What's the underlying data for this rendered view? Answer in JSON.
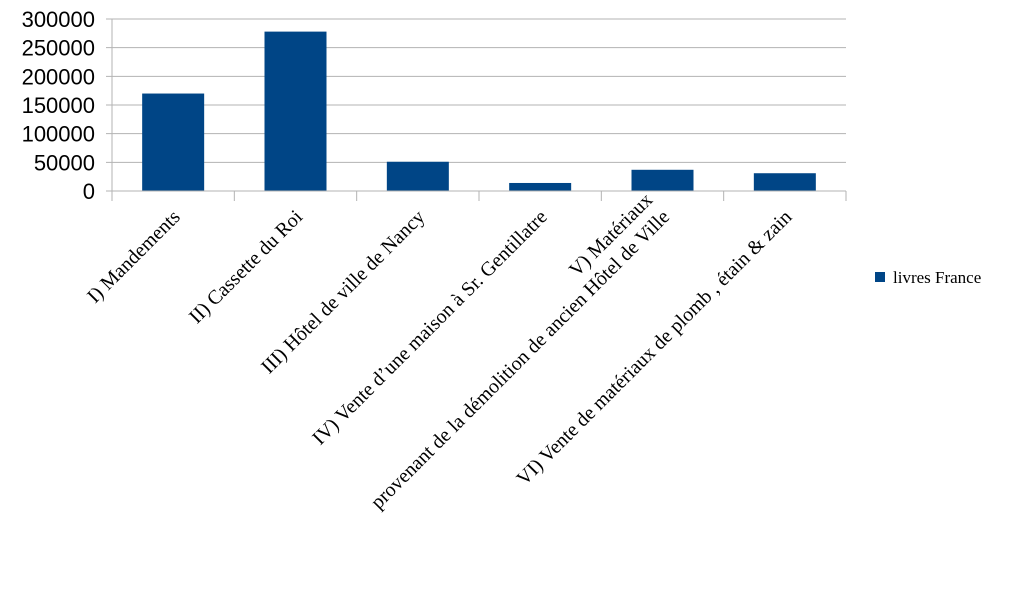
{
  "chart_data": {
    "type": "bar",
    "categories": [
      [
        "I) Mandements"
      ],
      [
        "II) Cassette du Roi"
      ],
      [
        "III) Hôtel de ville de Nancy"
      ],
      [
        "IV) Vente d’une maison à Sr. Gentillatre"
      ],
      [
        "V) Matériaux",
        "provenant de la démolition de ancien Hôtel de Ville"
      ],
      [
        "VI) Vente de matériaux de plomb , étain & zain"
      ]
    ],
    "series": [
      {
        "name": "livres France",
        "values": [
          170000,
          278000,
          51000,
          14000,
          37000,
          31000
        ]
      }
    ],
    "ylim": [
      0,
      300000
    ],
    "yticks": [
      "300000",
      "250000",
      "200000",
      "150000",
      "100000",
      "50000",
      "0"
    ],
    "grid": true,
    "legend_position": "right",
    "colors": {
      "bar": "#004586",
      "grid": "#b3b3b3",
      "axis": "#b3b3b3"
    }
  }
}
